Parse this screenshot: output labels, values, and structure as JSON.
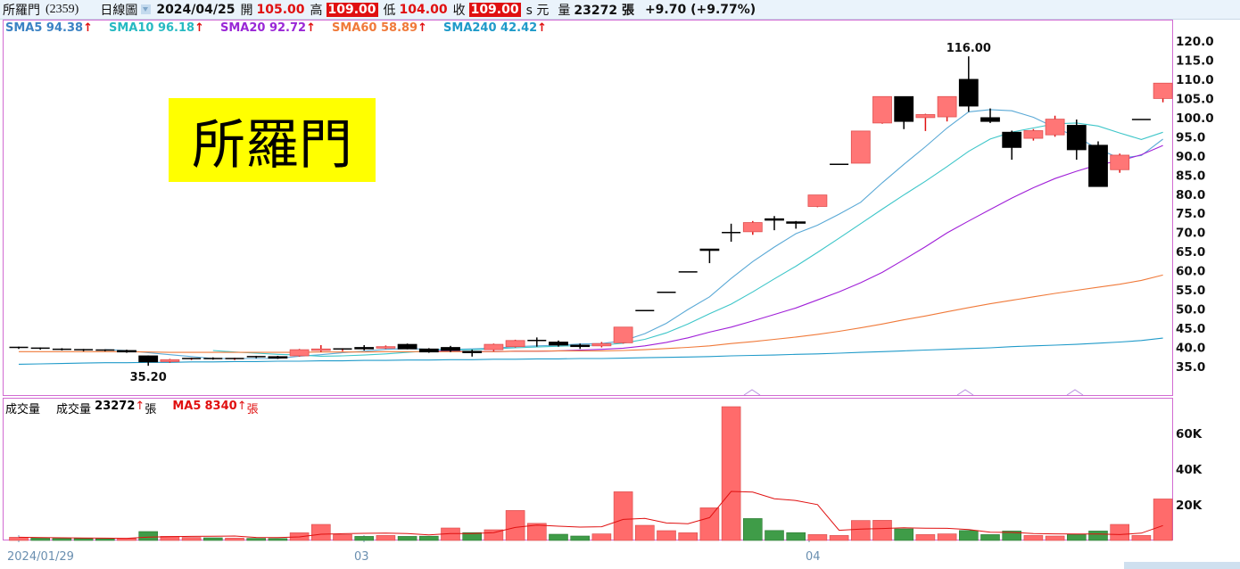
{
  "header": {
    "stock_name": "所羅門",
    "stock_code": "(2359)",
    "period": "日線圖",
    "date": "2024/04/25",
    "open_label": "開",
    "open": "105.00",
    "high_label": "高",
    "high": "109.00",
    "low_label": "低",
    "low": "104.00",
    "close_label": "收",
    "close": "109.00",
    "close_suffix": "s 元",
    "volume_label": "量",
    "volume": "23272 張",
    "change": "+9.70 (+9.77%)"
  },
  "watermark": "所羅門",
  "sma_legend": [
    {
      "name": "SMA5",
      "value": "94.38",
      "color": "#3b82c4"
    },
    {
      "name": "SMA10",
      "value": "96.18",
      "color": "#27b9c2"
    },
    {
      "name": "SMA20",
      "value": "92.72",
      "color": "#9a27d6"
    },
    {
      "name": "SMA60",
      "value": "58.89",
      "color": "#f07a3a"
    },
    {
      "name": "SMA240",
      "value": "42.42",
      "color": "#1f9ac9"
    }
  ],
  "volume_legend": {
    "title": "成交量",
    "vol_label": "成交量",
    "vol_value": "23272",
    "vol_unit": "張",
    "ma_label": "MA5",
    "ma_value": "8340",
    "ma_unit": "張",
    "ma_color": "#e01010"
  },
  "up_arrow": "↑",
  "x_labels": [
    "2024/01/29",
    "03",
    "04"
  ],
  "chart_data": {
    "type": "candlestick",
    "price_axis": {
      "ticks": [
        "120.0",
        "115.0",
        "110.0",
        "105.0",
        "100.0",
        "95.0",
        "90.0",
        "85.0",
        "80.0",
        "75.0",
        "70.0",
        "65.0",
        "60.0",
        "55.0",
        "50.0",
        "45.0",
        "40.0",
        "35.0"
      ],
      "min": 30.6,
      "max": 122.6
    },
    "volume_axis": {
      "ticks": [
        "60K",
        "40K",
        "20K"
      ],
      "max": 80000
    },
    "annotations": [
      {
        "text": "116.00",
        "candle_index": 44
      },
      {
        "text": "35.20",
        "candle_index": 6
      }
    ],
    "candles": [
      {
        "o": 40.0,
        "h": 40.2,
        "l": 39.6,
        "c": 39.8
      },
      {
        "o": 39.8,
        "h": 40.0,
        "l": 39.4,
        "c": 39.5
      },
      {
        "o": 39.5,
        "h": 39.8,
        "l": 39.2,
        "c": 39.5
      },
      {
        "o": 39.4,
        "h": 39.6,
        "l": 39.0,
        "c": 39.2
      },
      {
        "o": 39.3,
        "h": 39.5,
        "l": 39.0,
        "c": 39.2
      },
      {
        "o": 39.2,
        "h": 39.4,
        "l": 38.6,
        "c": 38.8
      },
      {
        "o": 37.8,
        "h": 37.9,
        "l": 35.2,
        "c": 36.2
      },
      {
        "o": 36.3,
        "h": 37.0,
        "l": 36.0,
        "c": 36.8
      },
      {
        "o": 37.0,
        "h": 37.3,
        "l": 36.7,
        "c": 37.1
      },
      {
        "o": 37.1,
        "h": 37.4,
        "l": 36.8,
        "c": 37.0
      },
      {
        "o": 37.0,
        "h": 37.3,
        "l": 36.7,
        "c": 37.1
      },
      {
        "o": 37.6,
        "h": 37.8,
        "l": 37.2,
        "c": 37.4
      },
      {
        "o": 37.6,
        "h": 37.8,
        "l": 37.0,
        "c": 37.2
      },
      {
        "o": 37.8,
        "h": 39.6,
        "l": 37.6,
        "c": 39.4
      },
      {
        "o": 39.2,
        "h": 40.6,
        "l": 38.8,
        "c": 39.6
      },
      {
        "o": 39.4,
        "h": 39.8,
        "l": 39.0,
        "c": 39.6
      },
      {
        "o": 40.0,
        "h": 40.6,
        "l": 39.2,
        "c": 39.6
      },
      {
        "o": 39.8,
        "h": 40.5,
        "l": 39.6,
        "c": 40.2
      },
      {
        "o": 40.8,
        "h": 41.0,
        "l": 39.5,
        "c": 39.6
      },
      {
        "o": 39.6,
        "h": 39.8,
        "l": 38.6,
        "c": 38.8
      },
      {
        "o": 40.0,
        "h": 40.4,
        "l": 38.8,
        "c": 39.2
      },
      {
        "o": 39.0,
        "h": 39.4,
        "l": 37.6,
        "c": 38.6
      },
      {
        "o": 39.4,
        "h": 41.0,
        "l": 39.0,
        "c": 40.8
      },
      {
        "o": 40.2,
        "h": 42.0,
        "l": 40.0,
        "c": 41.8
      },
      {
        "o": 41.8,
        "h": 42.6,
        "l": 40.2,
        "c": 41.6
      },
      {
        "o": 41.4,
        "h": 41.8,
        "l": 40.2,
        "c": 40.6
      },
      {
        "o": 40.6,
        "h": 41.0,
        "l": 39.6,
        "c": 40.2
      },
      {
        "o": 40.4,
        "h": 41.4,
        "l": 40.0,
        "c": 41.0
      },
      {
        "o": 41.2,
        "h": 45.3,
        "l": 41.0,
        "c": 45.3
      },
      {
        "o": 49.6,
        "h": 49.6,
        "l": 49.6,
        "c": 49.6
      },
      {
        "o": 54.4,
        "h": 54.4,
        "l": 54.4,
        "c": 54.4
      },
      {
        "o": 59.7,
        "h": 59.7,
        "l": 59.7,
        "c": 59.7
      },
      {
        "o": 65.7,
        "h": 65.7,
        "l": 62.0,
        "c": 65.3
      },
      {
        "o": 70.0,
        "h": 72.3,
        "l": 67.6,
        "c": 70.0
      },
      {
        "o": 70.2,
        "h": 73.0,
        "l": 69.4,
        "c": 72.6
      },
      {
        "o": 73.6,
        "h": 74.3,
        "l": 70.6,
        "c": 73.2
      },
      {
        "o": 72.8,
        "h": 73.0,
        "l": 71.0,
        "c": 72.4
      },
      {
        "o": 76.8,
        "h": 79.8,
        "l": 76.6,
        "c": 79.8
      },
      {
        "o": 87.8,
        "h": 87.8,
        "l": 87.8,
        "c": 87.8
      },
      {
        "o": 88.1,
        "h": 96.5,
        "l": 88.1,
        "c": 96.5
      },
      {
        "o": 98.6,
        "h": 105.5,
        "l": 98.4,
        "c": 105.5
      },
      {
        "o": 105.5,
        "h": 105.5,
        "l": 97.0,
        "c": 99.0
      },
      {
        "o": 100.0,
        "h": 101.0,
        "l": 96.5,
        "c": 100.8
      },
      {
        "o": 100.2,
        "h": 105.5,
        "l": 99.0,
        "c": 105.5
      },
      {
        "o": 110.0,
        "h": 116.0,
        "l": 101.5,
        "c": 103.0
      },
      {
        "o": 100.0,
        "h": 102.4,
        "l": 98.6,
        "c": 99.0
      },
      {
        "o": 96.2,
        "h": 96.6,
        "l": 89.0,
        "c": 92.2
      },
      {
        "o": 94.6,
        "h": 97.0,
        "l": 94.0,
        "c": 96.6
      },
      {
        "o": 95.5,
        "h": 100.5,
        "l": 95.0,
        "c": 99.6
      },
      {
        "o": 98.0,
        "h": 99.5,
        "l": 89.0,
        "c": 91.6
      },
      {
        "o": 92.8,
        "h": 93.8,
        "l": 82.0,
        "c": 82.0
      },
      {
        "o": 86.4,
        "h": 90.6,
        "l": 85.6,
        "c": 90.2
      },
      {
        "o": 99.5,
        "h": 99.5,
        "l": 99.5,
        "c": 99.5
      },
      {
        "o": 105.0,
        "h": 109.0,
        "l": 104.0,
        "c": 109.0
      }
    ],
    "volumes": [
      {
        "v": 1800,
        "up": true
      },
      {
        "v": 1400,
        "up": false
      },
      {
        "v": 1200,
        "up": false
      },
      {
        "v": 1100,
        "up": false
      },
      {
        "v": 1000,
        "up": false
      },
      {
        "v": 1100,
        "up": true
      },
      {
        "v": 5000,
        "up": false
      },
      {
        "v": 2300,
        "up": true
      },
      {
        "v": 1700,
        "up": true
      },
      {
        "v": 1500,
        "up": false
      },
      {
        "v": 1300,
        "up": true
      },
      {
        "v": 1200,
        "up": false
      },
      {
        "v": 1100,
        "up": false
      },
      {
        "v": 4300,
        "up": true
      },
      {
        "v": 9000,
        "up": true
      },
      {
        "v": 3300,
        "up": true
      },
      {
        "v": 2300,
        "up": false
      },
      {
        "v": 2800,
        "up": true
      },
      {
        "v": 2300,
        "up": false
      },
      {
        "v": 2400,
        "up": false
      },
      {
        "v": 7000,
        "up": true
      },
      {
        "v": 4400,
        "up": false
      },
      {
        "v": 6000,
        "up": true
      },
      {
        "v": 16800,
        "up": true
      },
      {
        "v": 9600,
        "up": true
      },
      {
        "v": 3500,
        "up": false
      },
      {
        "v": 2500,
        "up": false
      },
      {
        "v": 3700,
        "up": true
      },
      {
        "v": 27300,
        "up": true
      },
      {
        "v": 8500,
        "up": true
      },
      {
        "v": 5500,
        "up": true
      },
      {
        "v": 4300,
        "up": true
      },
      {
        "v": 18300,
        "up": true
      },
      {
        "v": 75000,
        "up": true
      },
      {
        "v": 12300,
        "up": false
      },
      {
        "v": 5600,
        "up": false
      },
      {
        "v": 4400,
        "up": false
      },
      {
        "v": 3300,
        "up": true
      },
      {
        "v": 2800,
        "up": true
      },
      {
        "v": 11200,
        "up": true
      },
      {
        "v": 11300,
        "up": true
      },
      {
        "v": 6500,
        "up": false
      },
      {
        "v": 3300,
        "up": true
      },
      {
        "v": 3700,
        "up": true
      },
      {
        "v": 5600,
        "up": false
      },
      {
        "v": 3300,
        "up": false
      },
      {
        "v": 5300,
        "up": false
      },
      {
        "v": 2800,
        "up": true
      },
      {
        "v": 2500,
        "up": true
      },
      {
        "v": 3300,
        "up": false
      },
      {
        "v": 5300,
        "up": false
      },
      {
        "v": 9000,
        "up": true
      },
      {
        "v": 2800,
        "up": true
      },
      {
        "v": 23272,
        "up": true
      }
    ],
    "volume_ma5": [
      1800,
      1600,
      1500,
      1400,
      1300,
      1200,
      1900,
      2100,
      2300,
      2400,
      2500,
      1700,
      1600,
      2000,
      3500,
      3800,
      4000,
      4100,
      3900,
      3100,
      3900,
      3900,
      4400,
      7300,
      8600,
      8000,
      7500,
      7700,
      11800,
      12400,
      9800,
      9400,
      12800,
      27500,
      27100,
      23400,
      22400,
      20100,
      5700,
      6400,
      6700,
      7100,
      6900,
      6800,
      6100,
      4600,
      4500,
      3900,
      3700,
      3600,
      3600,
      3300,
      4100,
      8340
    ],
    "sma": [
      {
        "name": "SMA5",
        "values": [
          null,
          null,
          null,
          null,
          39.4,
          39.2,
          38.6,
          38.1,
          37.6,
          37.1,
          37.1,
          37.1,
          37.1,
          37.7,
          38.1,
          38.6,
          39.0,
          39.5,
          39.7,
          39.5,
          39.5,
          39.6,
          39.8,
          40.2,
          40.4,
          40.6,
          40.9,
          41.0,
          41.7,
          43.6,
          46.3,
          49.9,
          53.2,
          58.0,
          62.4,
          66.2,
          69.7,
          71.9,
          74.8,
          77.9,
          83.0,
          87.8,
          92.4,
          97.3,
          101.5,
          102.1,
          101.8,
          100.1,
          97.4,
          95.0,
          91.8,
          89.4,
          90.1,
          94.38
        ]
      },
      {
        "name": "SMA10",
        "values": [
          null,
          null,
          null,
          null,
          null,
          null,
          null,
          null,
          null,
          39.2,
          38.8,
          38.5,
          38.2,
          38.0,
          37.7,
          37.8,
          38.0,
          38.3,
          38.7,
          39.1,
          39.3,
          39.4,
          39.6,
          39.9,
          40.1,
          40.3,
          40.5,
          40.6,
          41.1,
          42.1,
          43.8,
          46.1,
          48.8,
          51.3,
          54.5,
          57.9,
          61.2,
          64.8,
          68.5,
          72.3,
          76.1,
          79.8,
          83.4,
          87.2,
          91.2,
          94.4,
          96.2,
          97.3,
          98.4,
          98.6,
          97.8,
          96.0,
          94.3,
          96.18
        ]
      },
      {
        "name": "SMA20",
        "values": [
          null,
          null,
          null,
          null,
          null,
          null,
          null,
          null,
          null,
          null,
          null,
          null,
          null,
          null,
          null,
          null,
          null,
          null,
          null,
          39.1,
          39.0,
          38.9,
          38.9,
          39.0,
          39.0,
          39.1,
          39.3,
          39.5,
          39.8,
          40.4,
          41.3,
          42.5,
          44.0,
          45.3,
          46.9,
          48.6,
          50.3,
          52.4,
          54.5,
          56.9,
          59.6,
          62.9,
          66.3,
          69.9,
          73.0,
          76.0,
          79.0,
          81.7,
          84.1,
          86.0,
          87.7,
          88.7,
          90.3,
          92.72
        ]
      },
      {
        "name": "SMA60",
        "values": [
          38.9,
          38.9,
          38.9,
          38.9,
          38.9,
          38.9,
          38.8,
          38.7,
          38.7,
          38.7,
          38.7,
          38.7,
          38.7,
          38.7,
          38.8,
          38.8,
          38.8,
          38.9,
          38.9,
          38.9,
          38.9,
          38.9,
          38.9,
          39.0,
          39.0,
          39.1,
          39.1,
          39.1,
          39.2,
          39.4,
          39.7,
          40.0,
          40.4,
          41.0,
          41.5,
          42.1,
          42.7,
          43.4,
          44.2,
          45.1,
          46.1,
          47.2,
          48.2,
          49.3,
          50.4,
          51.4,
          52.3,
          53.2,
          54.1,
          54.9,
          55.7,
          56.5,
          57.5,
          58.89
        ]
      },
      {
        "name": "SMA240",
        "values": [
          35.6,
          35.7,
          35.8,
          35.9,
          36.0,
          36.0,
          36.1,
          36.1,
          36.2,
          36.2,
          36.3,
          36.3,
          36.4,
          36.4,
          36.5,
          36.5,
          36.6,
          36.6,
          36.7,
          36.7,
          36.8,
          36.8,
          36.9,
          36.9,
          37.0,
          37.0,
          37.1,
          37.1,
          37.2,
          37.3,
          37.4,
          37.5,
          37.6,
          37.8,
          37.9,
          38.0,
          38.2,
          38.3,
          38.5,
          38.7,
          38.9,
          39.1,
          39.3,
          39.5,
          39.7,
          39.9,
          40.2,
          40.4,
          40.6,
          40.8,
          41.1,
          41.4,
          41.8,
          42.42
        ]
      }
    ]
  }
}
